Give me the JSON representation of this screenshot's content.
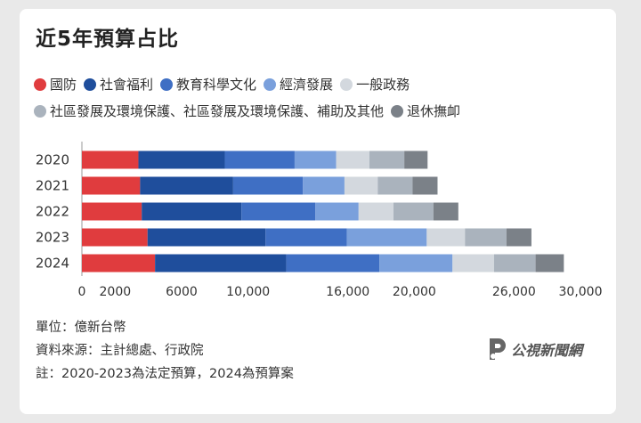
{
  "title": "近5年預算占比",
  "notes": {
    "unit": "單位：億新台幣",
    "source": "資料來源：主計總處、行政院",
    "note": "註：2020-2023為法定預算，2024為預算案"
  },
  "logo": {
    "text": "公視新聞網"
  },
  "colors": [
    "#e03c3e",
    "#1f4e9c",
    "#3f6fc4",
    "#7aa0dc",
    "#d3d8de",
    "#aab3bd",
    "#7b8188"
  ],
  "chart_data": {
    "type": "bar",
    "orientation": "horizontal",
    "stacked": true,
    "categories": [
      "2020",
      "2021",
      "2022",
      "2023",
      "2024"
    ],
    "series": [
      {
        "name": "國防",
        "values": [
          3400,
          3500,
          3600,
          3950,
          4400
        ]
      },
      {
        "name": "社會福利",
        "values": [
          5200,
          5600,
          6000,
          7100,
          7900
        ]
      },
      {
        "name": "教育科學文化",
        "values": [
          4200,
          4200,
          4450,
          4900,
          5600
        ]
      },
      {
        "name": "經濟發展",
        "values": [
          2500,
          2500,
          2600,
          4800,
          4400
        ]
      },
      {
        "name": "一般政務",
        "values": [
          2000,
          2000,
          2100,
          2300,
          2500
        ]
      },
      {
        "name": "社區發展及環境保護、社區發展及環境保護、補助及其他",
        "values": [
          2100,
          2100,
          2400,
          2500,
          2500
        ]
      },
      {
        "name": "退休撫卹",
        "values": [
          1400,
          1500,
          1500,
          1500,
          1700
        ]
      }
    ],
    "xticks": [
      "0",
      "2000",
      "6000",
      "10,000",
      "16,000",
      "20,000",
      "26,000",
      "30,000"
    ],
    "xtick_values": [
      0,
      2000,
      6000,
      10000,
      16000,
      20000,
      26000,
      30000
    ],
    "xlim": [
      0,
      30000
    ],
    "xlabel": "",
    "ylabel": "",
    "legend_position": "top"
  }
}
